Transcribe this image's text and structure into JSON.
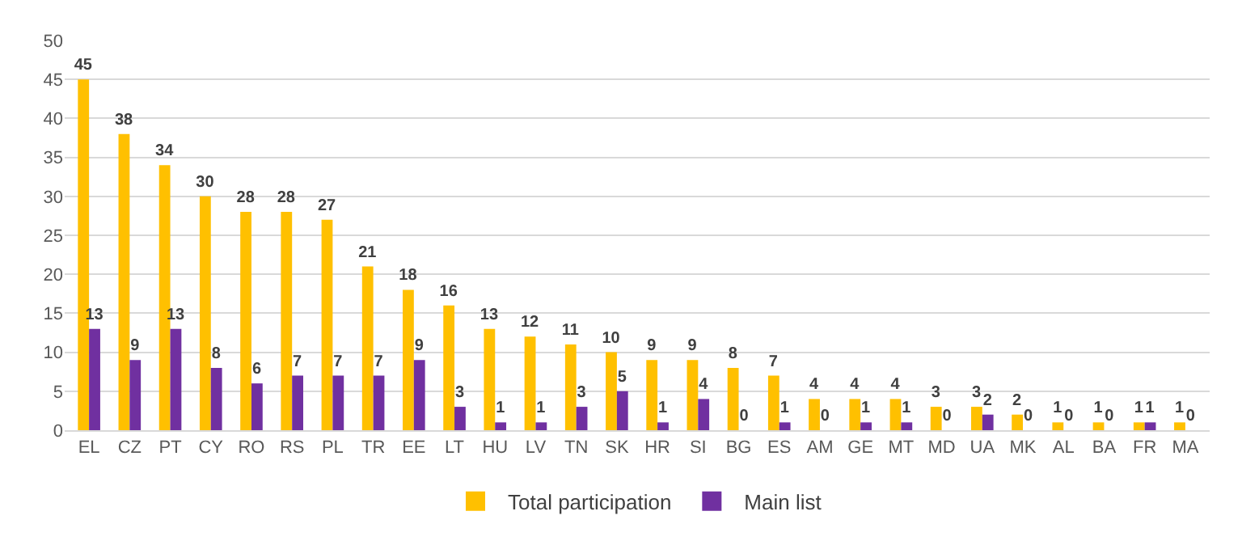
{
  "chart_data": {
    "type": "bar",
    "categories": [
      "EL",
      "CZ",
      "PT",
      "CY",
      "RO",
      "RS",
      "PL",
      "TR",
      "EE",
      "LT",
      "HU",
      "LV",
      "TN",
      "SK",
      "HR",
      "SI",
      "BG",
      "ES",
      "AM",
      "GE",
      "MT",
      "MD",
      "UA",
      "MK",
      "AL",
      "BA",
      "FR",
      "MA"
    ],
    "series": [
      {
        "name": "Total participation",
        "color": "#ffc000",
        "values": [
          45,
          38,
          34,
          30,
          28,
          28,
          27,
          21,
          18,
          16,
          13,
          12,
          11,
          10,
          9,
          9,
          8,
          7,
          4,
          4,
          4,
          3,
          3,
          2,
          1,
          1,
          1,
          1
        ]
      },
      {
        "name": "Main list",
        "color": "#7030a0",
        "values": [
          13,
          9,
          13,
          8,
          6,
          7,
          7,
          7,
          9,
          3,
          1,
          1,
          3,
          5,
          1,
          4,
          0,
          1,
          0,
          1,
          1,
          0,
          2,
          0,
          0,
          0,
          1,
          0
        ]
      }
    ],
    "ylim": [
      0,
      50
    ],
    "yticks": [
      0,
      5,
      10,
      15,
      20,
      25,
      30,
      35,
      40,
      45,
      50
    ],
    "grid": "y",
    "legend": "bottom",
    "data_labels": true
  }
}
